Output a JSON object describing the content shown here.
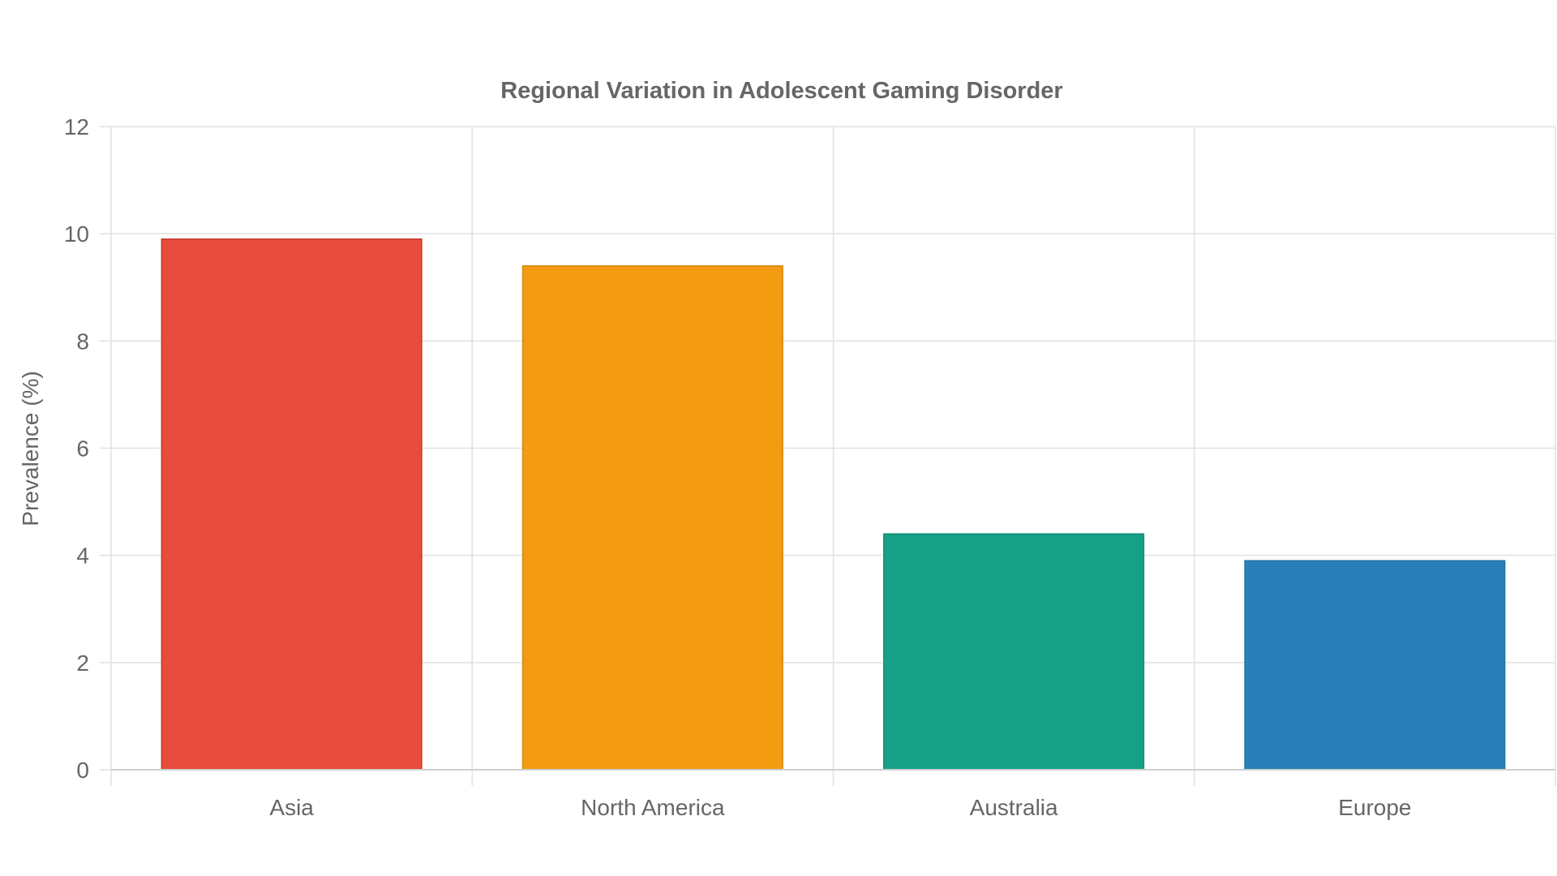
{
  "chart_data": {
    "type": "bar",
    "title": "Regional Variation in Adolescent Gaming Disorder",
    "xlabel": "",
    "ylabel": "Prevalence (%)",
    "categories": [
      "Asia",
      "North America",
      "Australia",
      "Europe"
    ],
    "values": [
      9.9,
      9.4,
      4.4,
      3.9
    ],
    "colors": [
      "#e74c3c",
      "#f39c12",
      "#16a085",
      "#2980b9"
    ],
    "border_colors": [
      "#c0392b",
      "#d68910",
      "#138d75",
      "#2471a3"
    ],
    "ylim": [
      0,
      12
    ],
    "yticks": [
      0,
      2,
      4,
      6,
      8,
      10,
      12
    ],
    "grid": true,
    "legend": "none"
  }
}
